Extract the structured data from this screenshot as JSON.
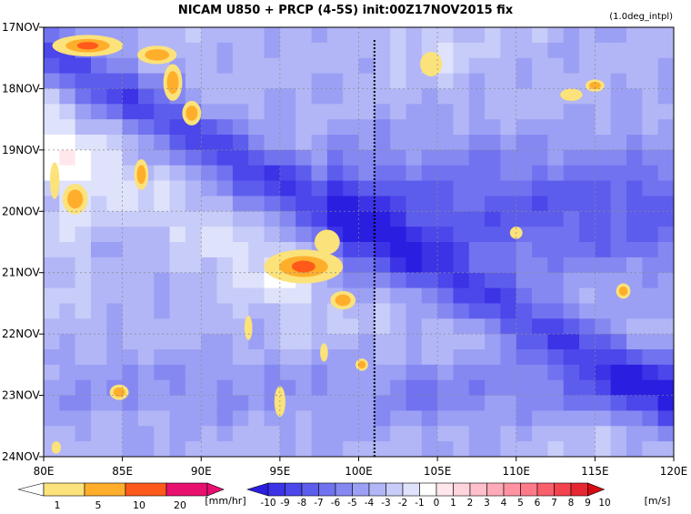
{
  "chart_data": {
    "type": "heatmap",
    "title": "NICAM  U850 + PRCP (4-5S) init:00Z17NOV2015 fix",
    "subtitle": "(1.0deg_intpl)",
    "xlabel": "",
    "ylabel": "",
    "x_ticks": [
      "80E",
      "85E",
      "90E",
      "95E",
      "100E",
      "105E",
      "110E",
      "115E",
      "120E"
    ],
    "x_range": [
      80,
      120
    ],
    "y_ticks": [
      "17NOV",
      "18NOV",
      "19NOV",
      "20NOV",
      "21NOV",
      "22NOV",
      "23NOV",
      "24NOV"
    ],
    "y_range_days": [
      17,
      24
    ],
    "grid": true,
    "reference_line": {
      "lon": 101,
      "style": "dotted"
    },
    "u850_field": {
      "units": "m/s",
      "levels": [
        -10,
        -9,
        -8,
        -7,
        -6,
        -5,
        -4,
        -3,
        -2,
        -1,
        0,
        1,
        2,
        3,
        4,
        5,
        6,
        7,
        8,
        9,
        10
      ],
      "colors": [
        "#2a1ee0",
        "#3c32e6",
        "#4b47ea",
        "#5d5ded",
        "#7072f0",
        "#8688f2",
        "#9ca0f4",
        "#b2b6f6",
        "#c8ccf8",
        "#dfe2fb",
        "#ffffff",
        "#ffe7ec",
        "#ffd4dc",
        "#ffc0cb",
        "#ffaab8",
        "#ff93a2",
        "#ff7a88",
        "#fa5f6c",
        "#f2434f",
        "#e62733",
        "#d60a14"
      ]
    },
    "precip_field": {
      "units": "mm/hr",
      "levels": [
        1,
        5,
        10,
        20
      ],
      "colors": [
        "#ffffff",
        "#fbe27a",
        "#ffae2c",
        "#ff5a1a",
        "#e8106f"
      ]
    },
    "precip_blobs": [
      {
        "lon": 82.8,
        "day": 17.3,
        "w": 4.5,
        "h": 0.35,
        "level": 3
      },
      {
        "lon": 87.2,
        "day": 17.45,
        "w": 2.5,
        "h": 0.3,
        "level": 2
      },
      {
        "lon": 88.2,
        "day": 17.9,
        "w": 1.2,
        "h": 0.6,
        "level": 2
      },
      {
        "lon": 89.4,
        "day": 18.4,
        "w": 1.2,
        "h": 0.4,
        "level": 2
      },
      {
        "lon": 86.2,
        "day": 19.4,
        "w": 0.9,
        "h": 0.5,
        "level": 2
      },
      {
        "lon": 82.0,
        "day": 19.8,
        "w": 1.6,
        "h": 0.5,
        "level": 2
      },
      {
        "lon": 80.7,
        "day": 19.5,
        "w": 0.6,
        "h": 0.6,
        "level": 1
      },
      {
        "lon": 96.5,
        "day": 20.9,
        "w": 5.0,
        "h": 0.55,
        "level": 3
      },
      {
        "lon": 98.0,
        "day": 20.5,
        "w": 1.6,
        "h": 0.4,
        "level": 1
      },
      {
        "lon": 99.0,
        "day": 21.45,
        "w": 1.6,
        "h": 0.3,
        "level": 2
      },
      {
        "lon": 100.2,
        "day": 22.5,
        "w": 0.8,
        "h": 0.2,
        "level": 2
      },
      {
        "lon": 84.8,
        "day": 22.95,
        "w": 1.2,
        "h": 0.25,
        "level": 2
      },
      {
        "lon": 95.0,
        "day": 23.1,
        "w": 0.7,
        "h": 0.5,
        "level": 1
      },
      {
        "lon": 104.6,
        "day": 17.6,
        "w": 1.4,
        "h": 0.4,
        "level": 1
      },
      {
        "lon": 113.5,
        "day": 18.1,
        "w": 1.4,
        "h": 0.2,
        "level": 1
      },
      {
        "lon": 115.0,
        "day": 17.95,
        "w": 1.2,
        "h": 0.2,
        "level": 2
      },
      {
        "lon": 116.8,
        "day": 21.3,
        "w": 0.9,
        "h": 0.25,
        "level": 2
      },
      {
        "lon": 110.0,
        "day": 20.35,
        "w": 0.8,
        "h": 0.2,
        "level": 1
      },
      {
        "lon": 93.0,
        "day": 21.9,
        "w": 0.5,
        "h": 0.4,
        "level": 1
      },
      {
        "lon": 97.8,
        "day": 22.3,
        "w": 0.5,
        "h": 0.3,
        "level": 1
      },
      {
        "lon": 80.8,
        "day": 23.85,
        "w": 0.6,
        "h": 0.2,
        "level": 1
      }
    ],
    "precip_legend": {
      "labels": [
        "1",
        "5",
        "10",
        "20"
      ],
      "unit_label": "[mm/hr]"
    },
    "u850_legend": {
      "labels": [
        "-10",
        "-9",
        "-8",
        "-7",
        "-6",
        "-5",
        "-4",
        "-3",
        "-2",
        "-1",
        "0",
        "1",
        "2",
        "3",
        "4",
        "5",
        "6",
        "7",
        "8",
        "9",
        "10"
      ],
      "unit_label": "[m/s]"
    }
  }
}
